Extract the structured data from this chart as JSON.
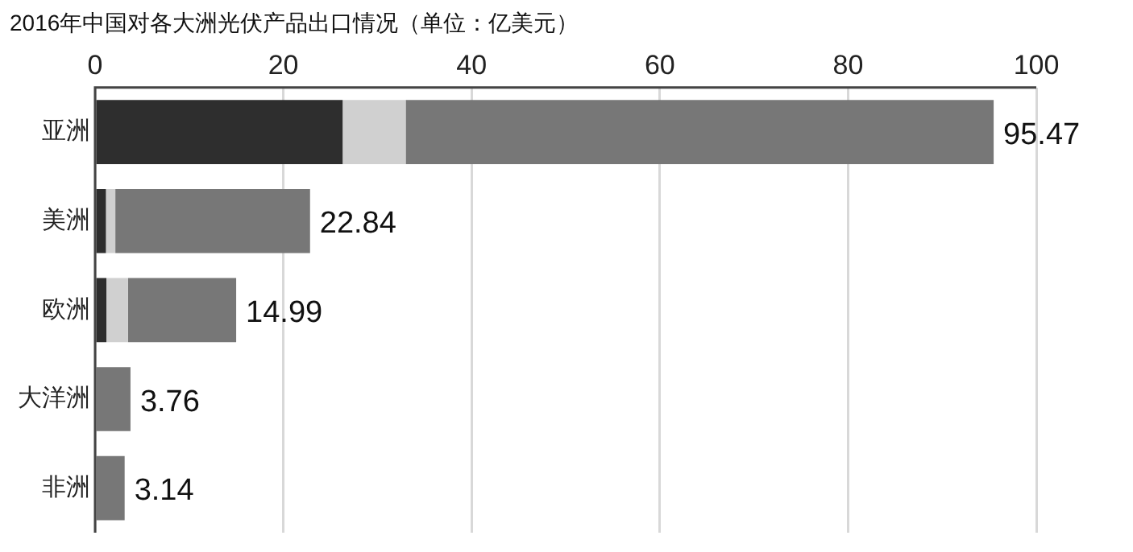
{
  "chart_data": {
    "type": "bar",
    "orientation": "horizontal",
    "stacked": true,
    "title": "2016年中国对各大洲光伏产品出口情况（单位：亿美元）",
    "categories": [
      "亚洲",
      "美洲",
      "欧洲",
      "大洋洲",
      "非洲"
    ],
    "series": [
      {
        "color": "#2e2e2e",
        "values": [
          26.3,
          1.15,
          1.2,
          null,
          null
        ]
      },
      {
        "color": "#d0d0d0",
        "values": [
          6.7,
          1.0,
          2.3,
          null,
          null
        ]
      },
      {
        "color": "#777777",
        "values": [
          62.47,
          20.69,
          11.49,
          3.76,
          3.14
        ]
      }
    ],
    "totals": [
      "95.47",
      "22.84",
      "14.99",
      "3.76",
      "3.14"
    ],
    "xlim": [
      0,
      100
    ],
    "xticks": [
      0,
      20,
      40,
      60,
      80,
      100
    ],
    "grid": "x",
    "legend": false
  }
}
